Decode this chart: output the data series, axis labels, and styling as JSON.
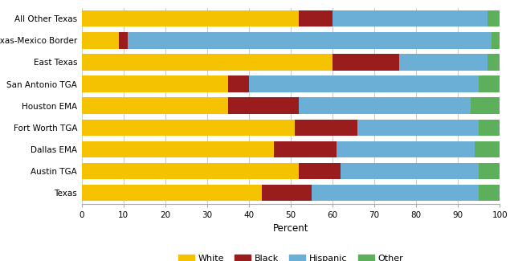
{
  "regions": [
    "Texas",
    "Austin TGA",
    "Dallas EMA",
    "Fort Worth TGA",
    "Houston EMA",
    "San Antonio TGA",
    "East Texas",
    "Texas-Mexico Border",
    "All Other Texas"
  ],
  "white": [
    43,
    52,
    46,
    51,
    35,
    35,
    60,
    9,
    52
  ],
  "black": [
    12,
    10,
    15,
    15,
    17,
    5,
    16,
    2,
    8
  ],
  "hispanic": [
    40,
    33,
    33,
    29,
    41,
    55,
    21,
    87,
    37
  ],
  "other": [
    5,
    5,
    6,
    5,
    7,
    5,
    3,
    2,
    3
  ],
  "colors": {
    "white": "#F5C200",
    "black": "#9B1C1C",
    "hispanic": "#6BAED6",
    "other": "#5DAF5C"
  },
  "xlabel": "Percent",
  "xlim": [
    0,
    100
  ],
  "xticks": [
    0,
    10,
    20,
    30,
    40,
    50,
    60,
    70,
    80,
    90,
    100
  ],
  "bar_height": 0.75,
  "figsize": [
    6.35,
    3.25
  ],
  "dpi": 100,
  "legend_items": [
    {
      "label": "White",
      "color": "#F5C200"
    },
    {
      "label": "Black",
      "color": "#9B1C1C"
    },
    {
      "label": "Hispanic",
      "color": "#6BAED6"
    },
    {
      "label": "Other",
      "color": "#5DAF5C"
    }
  ]
}
